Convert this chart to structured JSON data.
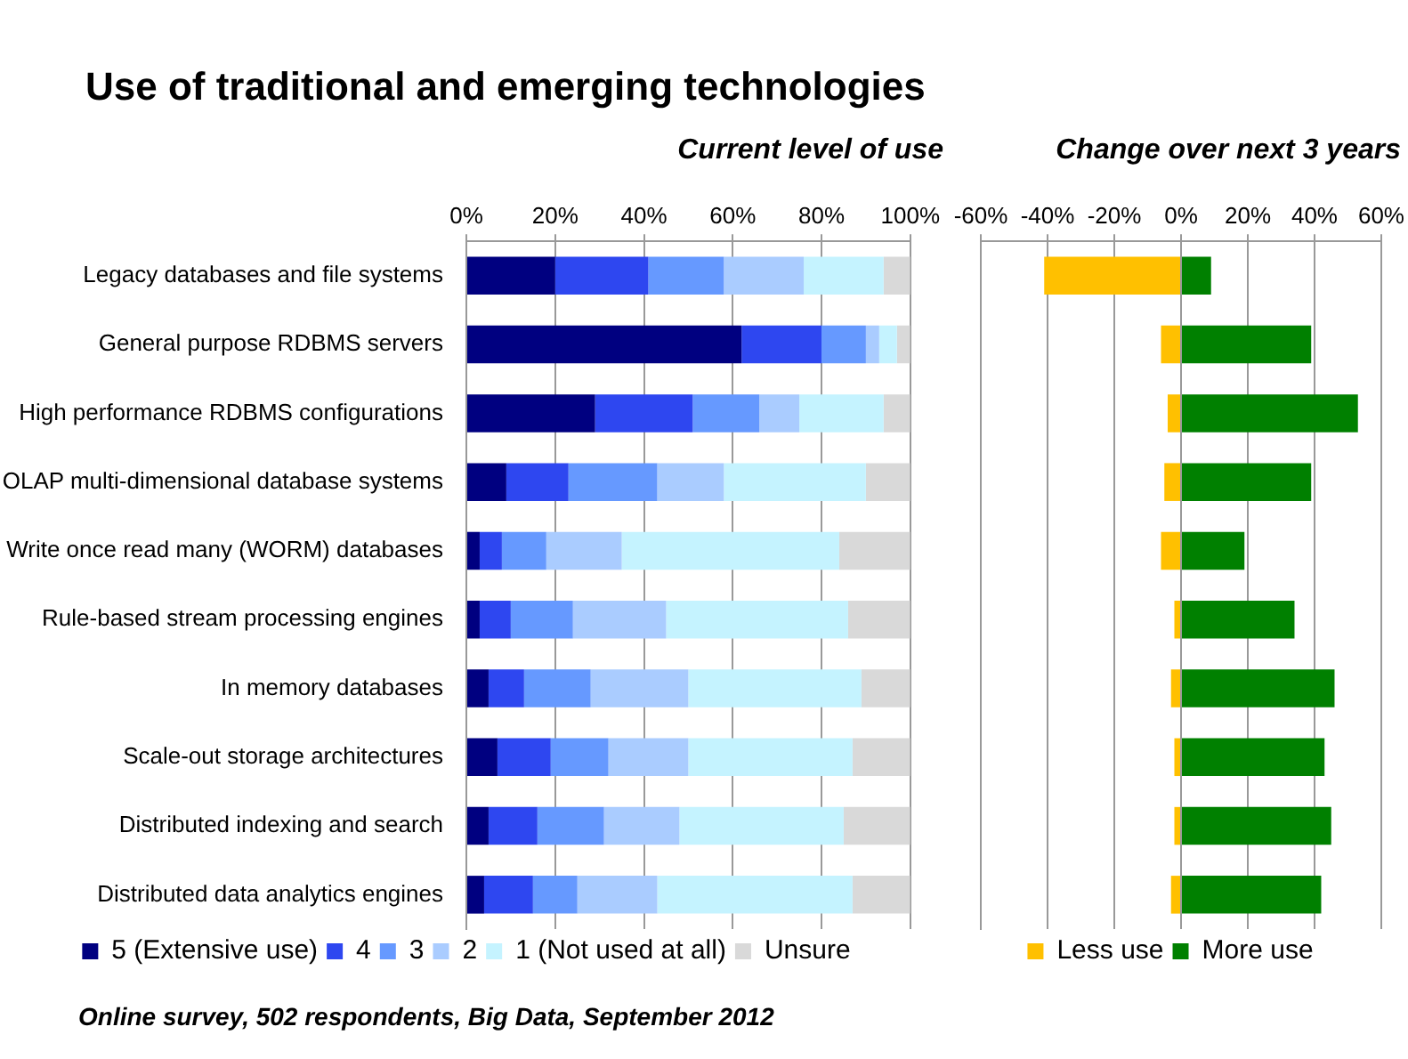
{
  "chart_data": [
    {
      "type": "bar",
      "orientation": "horizontal",
      "stacked": true,
      "title": "Use of traditional and emerging technologies",
      "subtitle": "Current level of use",
      "categories": [
        "Legacy databases and file systems",
        "General purpose RDBMS servers",
        "High performance RDBMS configurations",
        "OLAP multi-dimensional database systems",
        "Write once read many (WORM) databases",
        "Rule-based stream processing engines",
        "In memory databases",
        "Scale-out storage architectures",
        "Distributed indexing and search",
        "Distributed data analytics engines"
      ],
      "series": [
        {
          "name": "5 (Extensive use)",
          "color": "#000080",
          "values": [
            20,
            62,
            29,
            9,
            3,
            3,
            5,
            7,
            5,
            4
          ]
        },
        {
          "name": "4",
          "color": "#2e47f0",
          "values": [
            21,
            18,
            22,
            14,
            5,
            7,
            8,
            12,
            11,
            11
          ]
        },
        {
          "name": "3",
          "color": "#6699ff",
          "values": [
            17,
            10,
            15,
            20,
            10,
            14,
            15,
            13,
            15,
            10
          ]
        },
        {
          "name": "2",
          "color": "#aaccff",
          "values": [
            18,
            3,
            9,
            15,
            17,
            21,
            22,
            18,
            17,
            18
          ]
        },
        {
          "name": "1 (Not used at all)",
          "color": "#c5f3ff",
          "values": [
            18,
            4,
            19,
            32,
            49,
            41,
            39,
            37,
            37,
            44
          ]
        },
        {
          "name": "Unsure",
          "color": "#d9d9d9",
          "values": [
            6,
            3,
            6,
            10,
            16,
            14,
            11,
            13,
            15,
            13
          ]
        }
      ],
      "xlim": [
        0,
        100
      ],
      "xticks": [
        {
          "value": 0,
          "label": "0%"
        },
        {
          "value": 20,
          "label": "20%"
        },
        {
          "value": 40,
          "label": "40%"
        },
        {
          "value": 60,
          "label": "60%"
        },
        {
          "value": 80,
          "label": "80%"
        },
        {
          "value": 100,
          "label": "100%"
        }
      ],
      "grid": "x",
      "legend": "bottom",
      "annotations": [
        "Online survey, 502 respondents, Big Data, September 2012"
      ]
    },
    {
      "type": "bar",
      "orientation": "horizontal",
      "stacked": true,
      "subtitle": "Change over next 3 years",
      "categories": [
        null,
        null,
        null,
        null,
        null,
        null,
        null,
        null,
        null,
        null
      ],
      "series": [
        {
          "name": "Less use",
          "color": "#ffc000",
          "values": [
            -41,
            -6,
            -4,
            -5,
            -6,
            -2,
            -3,
            -2,
            -2,
            -3
          ]
        },
        {
          "name": "More use",
          "color": "#008000",
          "values": [
            9,
            39,
            53,
            39,
            19,
            34,
            46,
            43,
            45,
            42
          ]
        }
      ],
      "xlim": [
        -60,
        60
      ],
      "xticks": [
        {
          "value": -60,
          "label": "-60%"
        },
        {
          "value": -40,
          "label": "-40%"
        },
        {
          "value": -20,
          "label": "-20%"
        },
        {
          "value": 0,
          "label": "0%"
        },
        {
          "value": 20,
          "label": "20%"
        },
        {
          "value": 40,
          "label": "40%"
        },
        {
          "value": 60,
          "label": "60%"
        }
      ],
      "grid": "x",
      "legend": "bottom"
    }
  ]
}
